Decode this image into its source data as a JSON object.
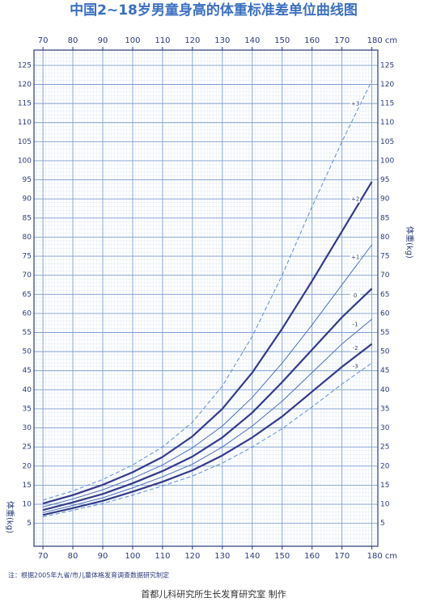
{
  "chart_data": {
    "type": "line",
    "title": "中国2~18岁男童身高的体重标准差单位曲线图",
    "y_label": "体重(kg)",
    "note": "注：根据2005年九省/市儿童体格发育调查数据研究制定",
    "credit": "首都儿科研究所生长发育研究室  制作",
    "x": [
      70,
      80,
      90,
      100,
      110,
      120,
      130,
      140,
      150,
      160,
      170,
      180
    ],
    "series": [
      {
        "name": "+3",
        "color": "#5b8fd0",
        "style": "dashed",
        "values": [
          11.1,
          13.5,
          16.5,
          20.3,
          25,
          31.5,
          41,
          54,
          70,
          88,
          105,
          121
        ]
      },
      {
        "name": "+2",
        "color": "#343b8c",
        "style": "bold",
        "values": [
          10.2,
          12.4,
          15.1,
          18.4,
          22.4,
          27.8,
          35,
          44.5,
          56,
          68.5,
          81.5,
          94.5
        ]
      },
      {
        "name": "+1",
        "color": "#4a70b8",
        "style": "thin",
        "values": [
          9.3,
          11.4,
          13.8,
          16.8,
          20.3,
          24.8,
          30.5,
          38,
          47,
          57,
          67.5,
          78
        ]
      },
      {
        "name": "0",
        "color": "#343b8c",
        "style": "bold",
        "values": [
          8.5,
          10.5,
          12.7,
          15.5,
          18.7,
          22.5,
          27.5,
          34,
          42,
          50.5,
          59,
          66.5
        ]
      },
      {
        "name": "-1",
        "color": "#4a70b8",
        "style": "thin",
        "values": [
          7.8,
          9.7,
          11.7,
          14.3,
          17.2,
          20.5,
          25,
          30.5,
          37,
          44.5,
          52,
          58.5
        ]
      },
      {
        "name": "-2",
        "color": "#343b8c",
        "style": "bold",
        "values": [
          7.2,
          9.0,
          10.9,
          13.3,
          15.9,
          18.9,
          22.8,
          27.5,
          33,
          39.5,
          46,
          52
        ]
      },
      {
        "name": "-3",
        "color": "#5b8fd0",
        "style": "dashed",
        "values": [
          6.7,
          8.4,
          10.2,
          12.4,
          14.8,
          17.4,
          20.8,
          25,
          29.8,
          35.5,
          41.5,
          47
        ]
      }
    ],
    "xlim": [
      67,
      182
    ],
    "xticks": [
      70,
      80,
      90,
      100,
      110,
      120,
      130,
      140,
      150,
      160,
      170,
      {
        "value": 180,
        "label": "180 cm"
      }
    ],
    "ylim": [
      -1,
      129
    ],
    "yticks": [
      5,
      10,
      15,
      20,
      25,
      30,
      35,
      40,
      45,
      50,
      55,
      60,
      65,
      70,
      75,
      80,
      85,
      90,
      95,
      100,
      105,
      110,
      115,
      120,
      125
    ],
    "grid": true
  }
}
